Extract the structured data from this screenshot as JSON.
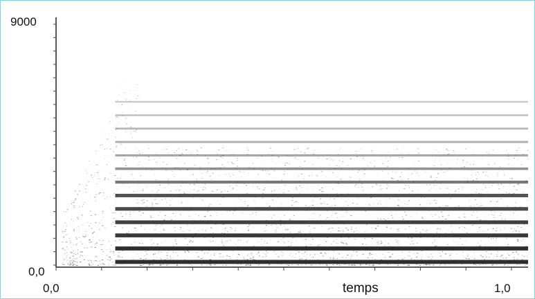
{
  "chart_data": {
    "type": "heatmap",
    "title": "",
    "xlabel": "temps",
    "ylabel": "",
    "xlim": [
      0.0,
      1.0
    ],
    "ylim": [
      0,
      9000
    ],
    "x_tick_labels": [
      "0,0",
      "1,0"
    ],
    "y_tick_labels": [
      "0,0",
      "9000"
    ],
    "grid": false,
    "colors": {
      "ink": "#1a1a1a",
      "background": "#ffffff",
      "frame_border": "#7fd4e6"
    },
    "harmonic_bands": {
      "onset_time": 0.13,
      "frequencies": [
        120,
        620,
        1110,
        1600,
        2100,
        2600,
        3100,
        3600,
        4100,
        4600,
        5100,
        5600,
        6100
      ],
      "intensities": [
        0.95,
        0.95,
        0.9,
        0.85,
        0.8,
        0.75,
        0.55,
        0.4,
        0.3,
        0.25,
        0.2,
        0.15,
        0.1
      ]
    }
  }
}
